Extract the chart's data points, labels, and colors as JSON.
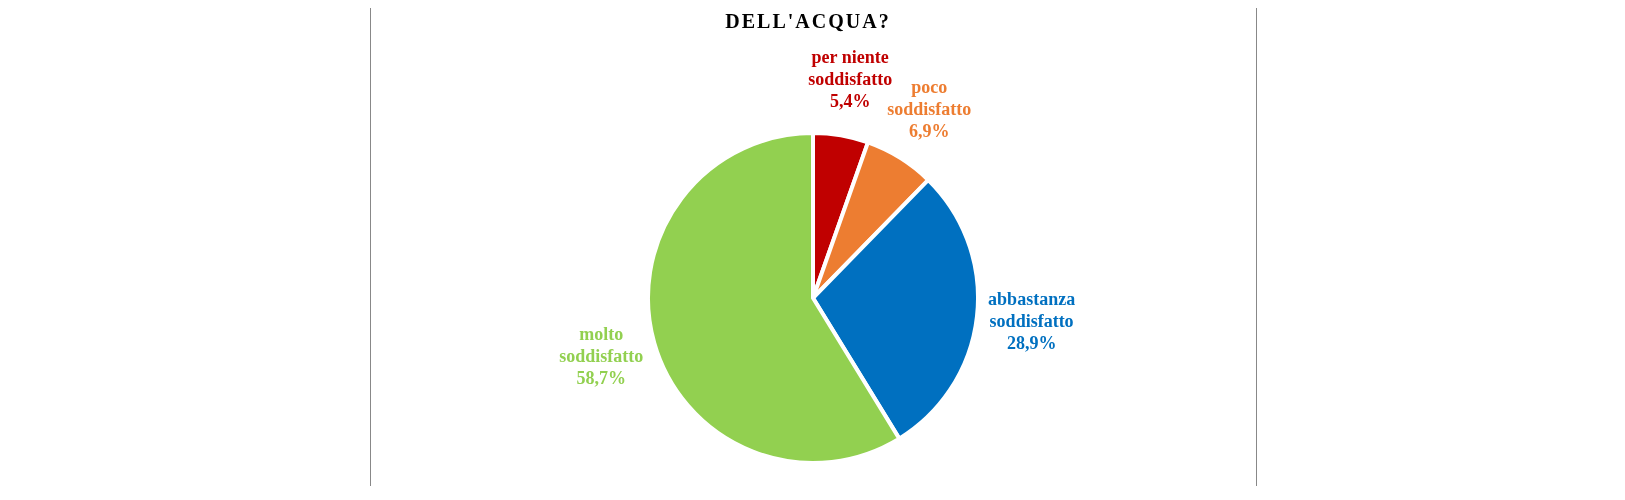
{
  "chart_data": {
    "type": "pie",
    "title": "DELL'ACQUA?",
    "categories": [
      "per niente soddisfatto",
      "poco soddisfatto",
      "abbastanza soddisfatto",
      "molto soddisfatto"
    ],
    "values": [
      5.4,
      6.9,
      28.9,
      58.7
    ],
    "value_labels": [
      "5,4%",
      "6,9%",
      "28,9%",
      "58,7%"
    ],
    "colors": [
      "#c00000",
      "#ed7d31",
      "#0070c0",
      "#92d050"
    ],
    "legend": false
  }
}
